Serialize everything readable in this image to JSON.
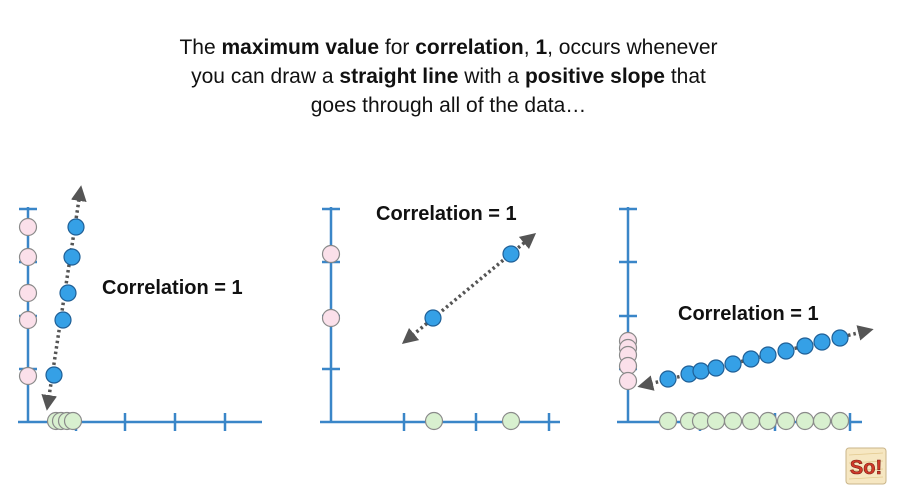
{
  "caption": {
    "line1_a": "The ",
    "line1_b": "maximum value",
    "line1_c": " for ",
    "line1_d": "correlation",
    "line1_e": ", ",
    "line1_f": "1",
    "line1_g": ", occurs whenever",
    "line2_a": "you can draw a ",
    "line2_b": "straight line",
    "line2_c": " with a ",
    "line2_d": "positive slope",
    "line2_e": " that",
    "line3": "goes through all of the data…"
  },
  "panels": [
    {
      "label": "Correlation = 1"
    },
    {
      "label": "Correlation = 1"
    },
    {
      "label": "Correlation = 1"
    }
  ],
  "colors": {
    "axis": "#3a86c8",
    "point_fill": "#35a0e6",
    "point_stroke": "#1f5f96",
    "y_marginal_fill": "#fbe0ea",
    "x_marginal_fill": "#d8f0cf",
    "marginal_stroke": "#8a8a8a",
    "trend_line": "#555555"
  },
  "logo": {
    "text": "So!",
    "icon": "statquest-logo"
  }
}
